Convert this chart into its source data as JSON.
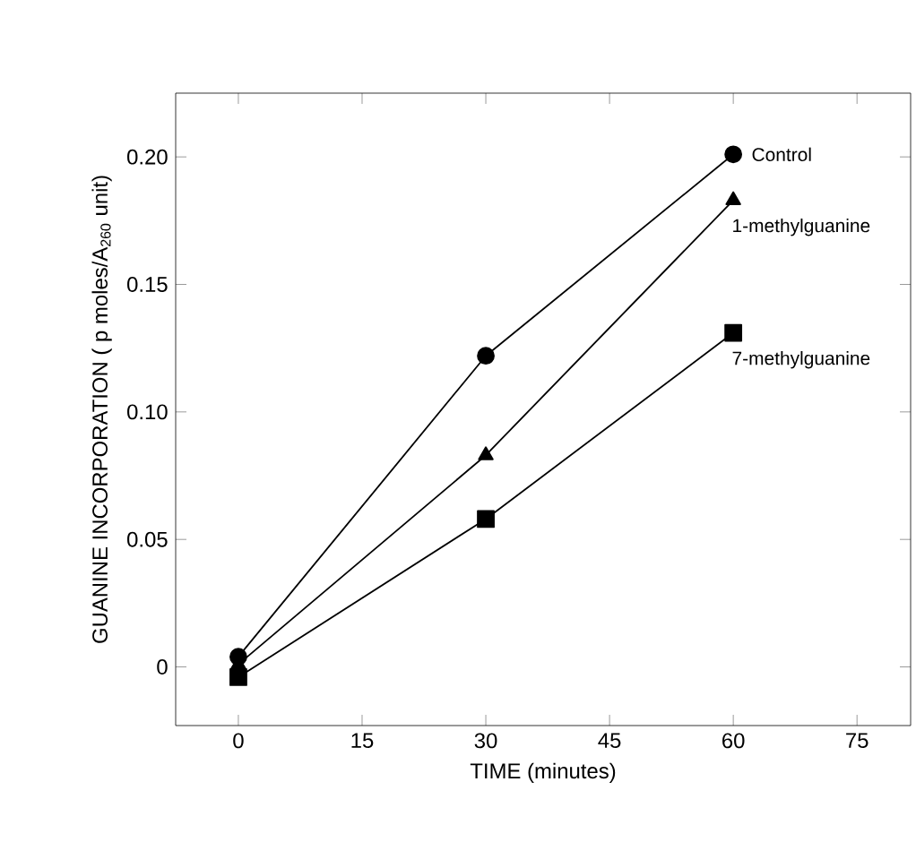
{
  "chart_data": {
    "type": "line",
    "xlabel": "TIME (minutes)",
    "ylabel": "GUANINE INCORPORATION ( p moles/A$_{260}$ unit)",
    "x": [
      0,
      30,
      60
    ],
    "series": [
      {
        "name": "Control",
        "color": "#000000",
        "marker": "circle",
        "values": [
          0.004,
          0.122,
          0.201
        ]
      },
      {
        "name": "1-methylguanine",
        "color": "#000000",
        "marker": "triangle",
        "values": [
          0.001,
          0.083,
          0.183
        ]
      },
      {
        "name": "7-methylguanine",
        "color": "#000000",
        "marker": "square",
        "values": [
          -0.004,
          0.058,
          0.131
        ]
      }
    ],
    "xlim": [
      -7.6,
      81.5
    ],
    "ylim": [
      -0.023,
      0.225
    ],
    "xticks": [
      0,
      15,
      30,
      45,
      60,
      75
    ],
    "yticks": [
      0,
      0.05,
      {
        "value": 0.1,
        "label": "0.10"
      },
      0.15,
      {
        "value": 0.2,
        "label": "0.20"
      }
    ],
    "grid": false,
    "legend": false
  }
}
